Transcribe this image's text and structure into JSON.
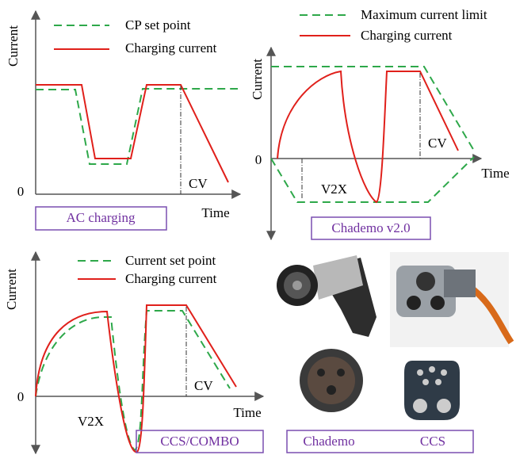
{
  "panels": [
    {
      "y_label": "Current",
      "legend": [
        "CP set point",
        "Charging current"
      ],
      "origin": "0",
      "x_label": "Time",
      "annotations": [
        "CV"
      ],
      "caption": "AC charging"
    },
    {
      "y_label": "Current",
      "legend": [
        "Maximum current limit",
        "Charging current"
      ],
      "origin": "0",
      "x_label": "Time",
      "annotations": [
        "V2X",
        "CV"
      ],
      "caption": "Chademo v2.0"
    },
    {
      "y_label": "Current",
      "legend": [
        "Current set point",
        "Charging current"
      ],
      "origin": "0",
      "x_label": "Time",
      "annotations": [
        "V2X",
        "CV"
      ],
      "caption": "CCS/COMBO"
    }
  ],
  "connectors": {
    "labels": [
      "Chademo",
      "CCS"
    ]
  }
}
